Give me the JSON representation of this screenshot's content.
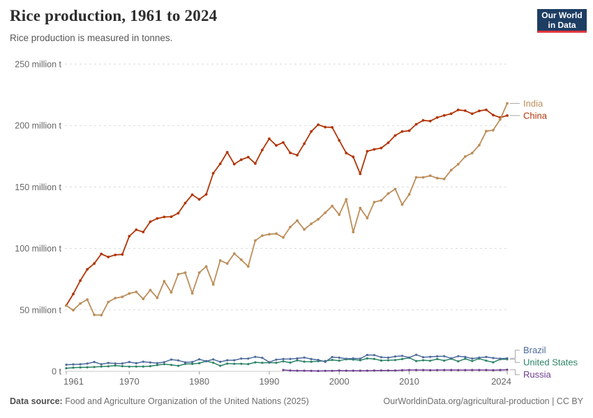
{
  "header": {
    "title": "Rice production, 1961 to 2024",
    "subtitle": "Rice production is measured in tonnes.",
    "logo": {
      "line1": "Our World",
      "line2": "in Data"
    }
  },
  "footer": {
    "source_label": "Data source:",
    "source_text": "Food and Agriculture Organization of the United Nations (2025)",
    "link_text": "OurWorldinData.org/agricultural-production | CC BY"
  },
  "colors": {
    "logo_bg": "#1d3d63",
    "logo_accent": "#e0363d",
    "grid": "#dadada",
    "axis": "#c8c8c8",
    "tick": "#999999",
    "axis_text": "#666666",
    "connector": "#a8a8a8"
  },
  "chart_data": {
    "type": "line",
    "title": "Rice production, 1961 to 2024",
    "unit": "tonnes",
    "values_unit": "million tonnes",
    "xlim": [
      1961,
      2024
    ],
    "ylim": [
      0,
      250
    ],
    "grid": "horizontal-dashed",
    "legend_position": "end-of-line labels, right side",
    "markers": true,
    "yticks": [
      {
        "value": 0,
        "label": "0 t"
      },
      {
        "value": 50,
        "label": "50 million t"
      },
      {
        "value": 100,
        "label": "100 million t"
      },
      {
        "value": 150,
        "label": "150 million t"
      },
      {
        "value": 200,
        "label": "200 million t"
      },
      {
        "value": 250,
        "label": "250 million t"
      }
    ],
    "xticks": [
      {
        "value": 1961,
        "label": "1961"
      },
      {
        "value": 1970,
        "label": "1970"
      },
      {
        "value": 1980,
        "label": "1980"
      },
      {
        "value": 1990,
        "label": "1990"
      },
      {
        "value": 2000,
        "label": "2000"
      },
      {
        "value": 2010,
        "label": "2010"
      },
      {
        "value": 2024,
        "label": "2024"
      }
    ],
    "series": [
      {
        "name": "India",
        "color": "#BC8E5A",
        "start_year": 1961,
        "values": [
          53.5,
          49.8,
          55.2,
          58.4,
          45.9,
          45.7,
          56.4,
          59.6,
          60.6,
          63.3,
          64.6,
          58.9,
          66.1,
          59.8,
          73.3,
          64.3,
          79.0,
          80.3,
          63.5,
          80.3,
          85.3,
          70.7,
          90.2,
          87.7,
          95.8,
          90.8,
          85.3,
          106.4,
          110.4,
          111.5,
          112.0,
          108.9,
          117.4,
          122.6,
          115.4,
          120.0,
          123.7,
          129.1,
          134.5,
          127.5,
          139.9,
          113.3,
          132.8,
          124.7,
          137.7,
          139.1,
          144.6,
          148.3,
          135.7,
          144.0,
          157.9,
          157.8,
          159.2,
          157.2,
          156.5,
          163.7,
          168.5,
          174.7,
          177.6,
          184.0,
          195.4,
          196.2,
          205.0,
          218.0
        ]
      },
      {
        "name": "China",
        "color": "#B13507",
        "start_year": 1961,
        "values": [
          53.6,
          62.9,
          73.8,
          83.0,
          87.7,
          95.5,
          93.0,
          94.7,
          95.1,
          110.0,
          115.2,
          113.4,
          121.7,
          124.4,
          125.6,
          125.8,
          128.7,
          136.9,
          143.7,
          139.9,
          144.0,
          161.2,
          168.9,
          178.3,
          168.6,
          172.2,
          174.3,
          169.1,
          180.1,
          189.3,
          183.8,
          186.2,
          177.8,
          175.9,
          185.2,
          195.1,
          200.7,
          198.7,
          198.5,
          187.9,
          177.6,
          174.5,
          160.7,
          179.1,
          180.6,
          181.7,
          186.0,
          191.9,
          195.1,
          195.8,
          201.0,
          204.2,
          203.6,
          206.5,
          208.2,
          209.6,
          212.7,
          212.1,
          209.6,
          211.9,
          212.8,
          208.5,
          206.6,
          208.1
        ]
      },
      {
        "name": "Brazil",
        "color": "#4C6A9C",
        "start_year": 1961,
        "values": [
          5.4,
          5.6,
          5.7,
          6.3,
          7.6,
          5.8,
          6.8,
          6.4,
          6.4,
          7.6,
          6.6,
          7.8,
          7.2,
          6.7,
          7.5,
          9.6,
          8.9,
          7.3,
          7.6,
          9.8,
          8.2,
          9.7,
          7.7,
          9.0,
          9.0,
          10.4,
          10.4,
          11.8,
          11.0,
          7.4,
          9.5,
          10.0,
          10.1,
          10.5,
          11.2,
          10.0,
          9.3,
          7.7,
          11.6,
          11.1,
          10.2,
          10.5,
          10.3,
          13.3,
          13.2,
          11.5,
          11.1,
          12.1,
          12.6,
          11.2,
          13.5,
          11.5,
          11.8,
          12.2,
          12.3,
          10.6,
          12.3,
          11.7,
          10.4,
          11.1,
          11.7,
          10.8,
          10.3,
          10.6
        ]
      },
      {
        "name": "United States",
        "color": "#2C8465",
        "start_year": 1961,
        "values": [
          2.5,
          3.0,
          3.2,
          3.3,
          3.5,
          3.9,
          4.1,
          4.7,
          4.2,
          3.8,
          3.9,
          3.9,
          4.2,
          5.1,
          5.8,
          5.2,
          4.5,
          6.0,
          6.0,
          6.6,
          8.3,
          7.0,
          4.5,
          6.3,
          6.1,
          6.1,
          5.9,
          7.3,
          7.0,
          7.1,
          7.0,
          8.1,
          7.1,
          8.9,
          7.9,
          7.8,
          8.3,
          8.4,
          9.3,
          8.7,
          9.8,
          9.6,
          9.0,
          10.5,
          10.1,
          8.8,
          9.0,
          9.2,
          10.0,
          11.0,
          8.4,
          9.0,
          8.6,
          10.0,
          8.7,
          10.2,
          8.1,
          10.2,
          8.4,
          10.3,
          8.7,
          7.3,
          9.8,
          9.8
        ]
      },
      {
        "name": "Russia",
        "color": "#6D3E91",
        "start_year": 1992,
        "values": [
          1.1,
          0.7,
          0.5,
          0.5,
          0.4,
          0.3,
          0.4,
          0.4,
          0.6,
          0.5,
          0.5,
          0.5,
          0.5,
          0.6,
          0.7,
          0.7,
          0.7,
          0.9,
          1.1,
          1.1,
          1.1,
          0.9,
          1.0,
          1.1,
          1.1,
          1.0,
          1.0,
          1.1,
          1.1,
          1.1,
          0.9,
          1.1,
          1.3
        ]
      }
    ]
  }
}
